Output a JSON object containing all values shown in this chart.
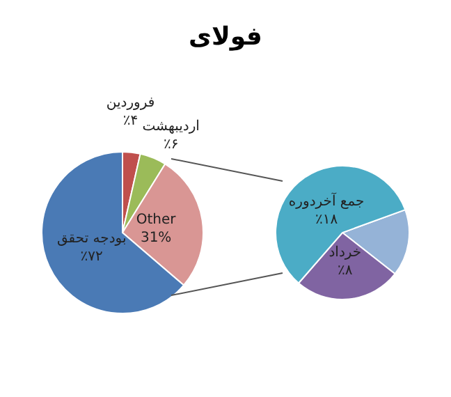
{
  "chart_data": [
    {
      "type": "pie",
      "title": "فولای",
      "categories": [
        "فروردین",
        "اردیبهشت",
        "Other",
        "بودجه تحقق"
      ],
      "values": [
        4,
        6,
        31,
        72
      ],
      "colors": [
        "#c0504d",
        "#9bbb59",
        "#d99694",
        "#4a7ab5"
      ],
      "value_labels": [
        "٪۴",
        "٪۶",
        "31%",
        "٪۷۲"
      ],
      "legend": false
    },
    {
      "type": "pie",
      "categories": [
        null,
        "خرداد",
        "جمع آخردوره"
      ],
      "values": [
        5,
        8,
        18
      ],
      "colors": [
        "#95b3d7",
        "#8064a2",
        "#4bacc6"
      ],
      "value_labels": [
        null,
        "٪۸",
        "٪۱۸"
      ],
      "legend": false
    }
  ]
}
